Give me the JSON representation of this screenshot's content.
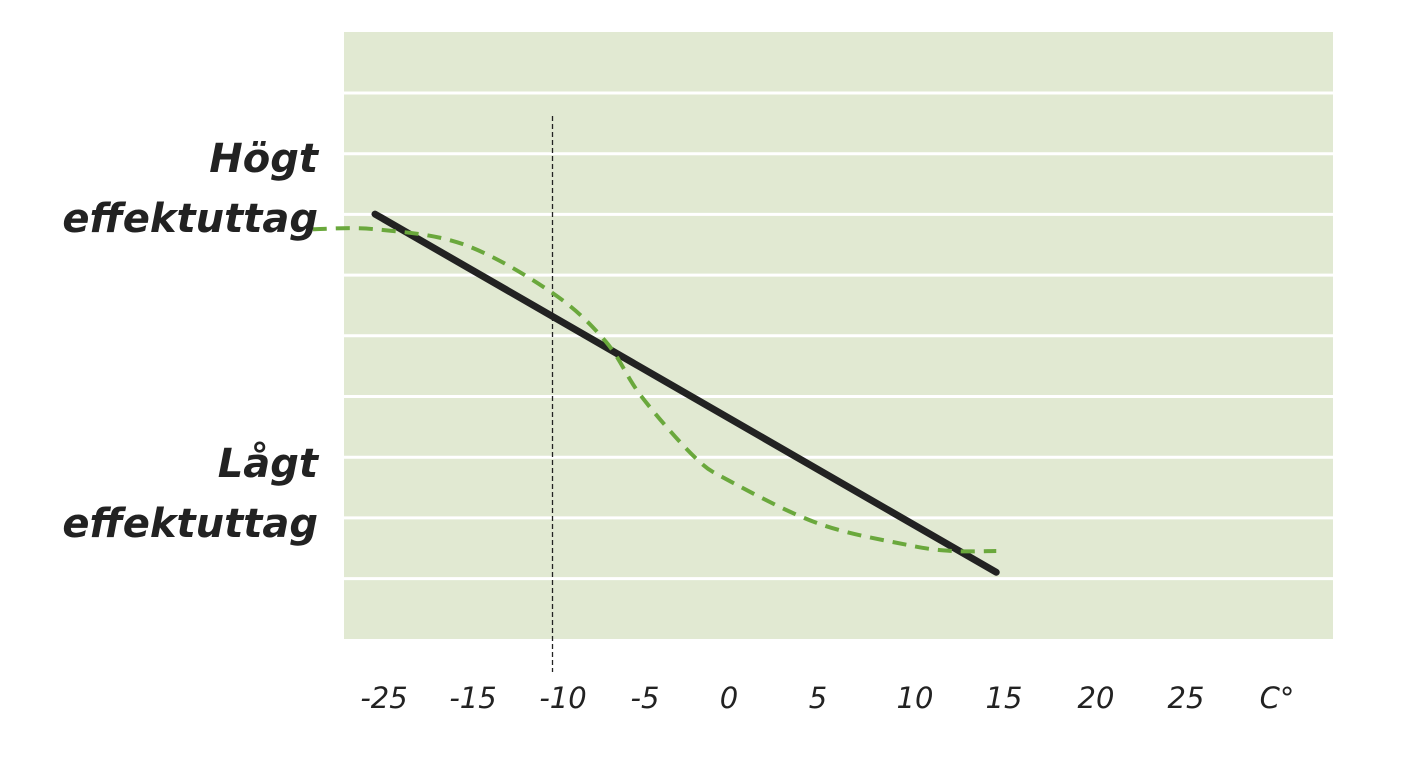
{
  "chart_data": {
    "type": "line",
    "title": "",
    "xlabel": "",
    "ylabel": "",
    "x_tick_labels": [
      "-25",
      "-15",
      "-10",
      "-5",
      "0",
      "5",
      "10",
      "15",
      "20",
      "25",
      "C°"
    ],
    "y_labels": {
      "high": [
        "Högt",
        "effektuttag"
      ],
      "low": [
        "Lågt",
        "effektuttag"
      ]
    },
    "reference_line_x": -10,
    "grid": true,
    "colors": {
      "plot_background": "#e1e9d2",
      "gridlines": "#ffffff",
      "solid_line": "#222222",
      "dashed_line": "#6aa83c",
      "reference_line": "#222222"
    },
    "series": [
      {
        "style": "solid",
        "x": [
          -20,
          15
        ],
        "y": [
          7.0,
          1.1
        ]
      },
      {
        "style": "dashed",
        "x": [
          -23.5,
          -20,
          -15,
          -10,
          -7,
          -5,
          -2,
          0,
          5,
          10,
          12.5,
          15
        ],
        "y": [
          6.75,
          6.75,
          6.5,
          5.7,
          4.9,
          4.0,
          3.0,
          2.6,
          1.9,
          1.55,
          1.45,
          1.45
        ]
      }
    ]
  }
}
